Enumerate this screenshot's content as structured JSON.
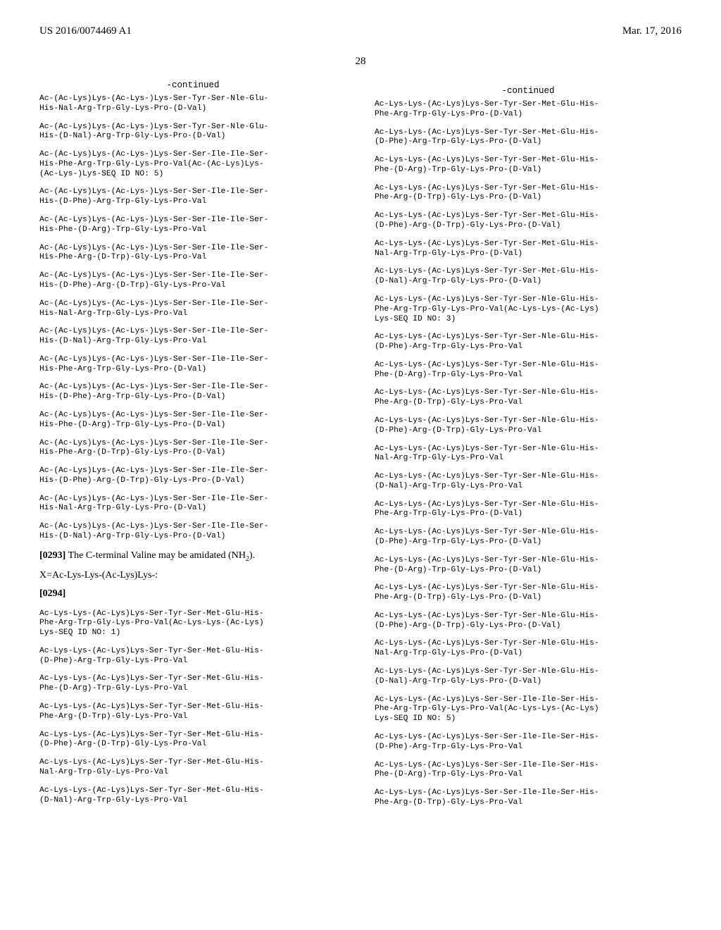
{
  "header": {
    "left": "US 2016/0074469 A1",
    "right": "Mar. 17, 2016",
    "page": "28"
  },
  "left": {
    "continued_label": "-continued",
    "seqs_top": [
      "Ac-(Ac-Lys)Lys-(Ac-Lys-)Lys-Ser-Tyr-Ser-Nle-Glu-\nHis-Nal-Arg-Trp-Gly-Lys-Pro-(D-Val)",
      "Ac-(Ac-Lys)Lys-(Ac-Lys-)Lys-Ser-Tyr-Ser-Nle-Glu-\nHis-(D-Nal)-Arg-Trp-Gly-Lys-Pro-(D-Val)",
      "Ac-(Ac-Lys)Lys-(Ac-Lys-)Lys-Ser-Ser-Ile-Ile-Ser-\nHis-Phe-Arg-Trp-Gly-Lys-Pro-Val(Ac-(Ac-Lys)Lys-\n(Ac-Lys-)Lys-SEQ ID NO: 5)",
      "Ac-(Ac-Lys)Lys-(Ac-Lys-)Lys-Ser-Ser-Ile-Ile-Ser-\nHis-(D-Phe)-Arg-Trp-Gly-Lys-Pro-Val",
      "Ac-(Ac-Lys)Lys-(Ac-Lys-)Lys-Ser-Ser-Ile-Ile-Ser-\nHis-Phe-(D-Arg)-Trp-Gly-Lys-Pro-Val",
      "Ac-(Ac-Lys)Lys-(Ac-Lys-)Lys-Ser-Ser-Ile-Ile-Ser-\nHis-Phe-Arg-(D-Trp)-Gly-Lys-Pro-Val",
      "Ac-(Ac-Lys)Lys-(Ac-Lys-)Lys-Ser-Ser-Ile-Ile-Ser-\nHis-(D-Phe)-Arg-(D-Trp)-Gly-Lys-Pro-Val",
      "Ac-(Ac-Lys)Lys-(Ac-Lys-)Lys-Ser-Ser-Ile-Ile-Ser-\nHis-Nal-Arg-Trp-Gly-Lys-Pro-Val",
      "Ac-(Ac-Lys)Lys-(Ac-Lys-)Lys-Ser-Ser-Ile-Ile-Ser-\nHis-(D-Nal)-Arg-Trp-Gly-Lys-Pro-Val",
      "Ac-(Ac-Lys)Lys-(Ac-Lys-)Lys-Ser-Ser-Ile-Ile-Ser-\nHis-Phe-Arg-Trp-Gly-Lys-Pro-(D-Val)",
      "Ac-(Ac-Lys)Lys-(Ac-Lys-)Lys-Ser-Ser-Ile-Ile-Ser-\nHis-(D-Phe)-Arg-Trp-Gly-Lys-Pro-(D-Val)",
      "Ac-(Ac-Lys)Lys-(Ac-Lys-)Lys-Ser-Ser-Ile-Ile-Ser-\nHis-Phe-(D-Arg)-Trp-Gly-Lys-Pro-(D-Val)",
      "Ac-(Ac-Lys)Lys-(Ac-Lys-)Lys-Ser-Ser-Ile-Ile-Ser-\nHis-Phe-Arg-(D-Trp)-Gly-Lys-Pro-(D-Val)",
      "Ac-(Ac-Lys)Lys-(Ac-Lys-)Lys-Ser-Ser-Ile-Ile-Ser-\nHis-(D-Phe)-Arg-(D-Trp)-Gly-Lys-Pro-(D-Val)",
      "Ac-(Ac-Lys)Lys-(Ac-Lys-)Lys-Ser-Ser-Ile-Ile-Ser-\nHis-Nal-Arg-Trp-Gly-Lys-Pro-(D-Val)",
      "Ac-(Ac-Lys)Lys-(Ac-Lys-)Lys-Ser-Ser-Ile-Ile-Ser-\nHis-(D-Nal)-Arg-Trp-Gly-Lys-Pro-(D-Val)"
    ],
    "para293_num": "[0293]",
    "para293_text": "   The C-terminal Valine may be amidated (NH",
    "para293_tail": ").",
    "xline": "X=Ac-Lys-Lys-(Ac-Lys)Lys-:",
    "para294_num": "[0294]",
    "seqs_bottom": [
      "Ac-Lys-Lys-(Ac-Lys)Lys-Ser-Tyr-Ser-Met-Glu-His-\nPhe-Arg-Trp-Gly-Lys-Pro-Val(Ac-Lys-Lys-(Ac-Lys)\nLys-SEQ ID NO: 1)",
      "Ac-Lys-Lys-(Ac-Lys)Lys-Ser-Tyr-Ser-Met-Glu-His-\n(D-Phe)-Arg-Trp-Gly-Lys-Pro-Val",
      "Ac-Lys-Lys-(Ac-Lys)Lys-Ser-Tyr-Ser-Met-Glu-His-\nPhe-(D-Arg)-Trp-Gly-Lys-Pro-Val",
      "Ac-Lys-Lys-(Ac-Lys)Lys-Ser-Tyr-Ser-Met-Glu-His-\nPhe-Arg-(D-Trp)-Gly-Lys-Pro-Val",
      "Ac-Lys-Lys-(Ac-Lys)Lys-Ser-Tyr-Ser-Met-Glu-His-\n(D-Phe)-Arg-(D-Trp)-Gly-Lys-Pro-Val",
      "Ac-Lys-Lys-(Ac-Lys)Lys-Ser-Tyr-Ser-Met-Glu-His-\nNal-Arg-Trp-Gly-Lys-Pro-Val",
      "Ac-Lys-Lys-(Ac-Lys)Lys-Ser-Tyr-Ser-Met-Glu-His-\n(D-Nal)-Arg-Trp-Gly-Lys-Pro-Val"
    ]
  },
  "right": {
    "continued_label": "-continued",
    "seqs": [
      "Ac-Lys-Lys-(Ac-Lys)Lys-Ser-Tyr-Ser-Met-Glu-His-\nPhe-Arg-Trp-Gly-Lys-Pro-(D-Val)",
      "Ac-Lys-Lys-(Ac-Lys)Lys-Ser-Tyr-Ser-Met-Glu-His-\n(D-Phe)-Arg-Trp-Gly-Lys-Pro-(D-Val)",
      "Ac-Lys-Lys-(Ac-Lys)Lys-Ser-Tyr-Ser-Met-Glu-His-\nPhe-(D-Arg)-Trp-Gly-Lys-Pro-(D-Val)",
      "Ac-Lys-Lys-(Ac-Lys)Lys-Ser-Tyr-Ser-Met-Glu-His-\nPhe-Arg-(D-Trp)-Gly-Lys-Pro-(D-Val)",
      "Ac-Lys-Lys-(Ac-Lys)Lys-Ser-Tyr-Ser-Met-Glu-His-\n(D-Phe)-Arg-(D-Trp)-Gly-Lys-Pro-(D-Val)",
      "Ac-Lys-Lys-(Ac-Lys)Lys-Ser-Tyr-Ser-Met-Glu-His-\nNal-Arg-Trp-Gly-Lys-Pro-(D-Val)",
      "Ac-Lys-Lys-(Ac-Lys)Lys-Ser-Tyr-Ser-Met-Glu-His-\n(D-Nal)-Arg-Trp-Gly-Lys-Pro-(D-Val)",
      "Ac-Lys-Lys-(Ac-Lys)Lys-Ser-Tyr-Ser-Nle-Glu-His-\nPhe-Arg-Trp-Gly-Lys-Pro-Val(Ac-Lys-Lys-(Ac-Lys)\nLys-SEQ ID NO: 3)",
      "Ac-Lys-Lys-(Ac-Lys)Lys-Ser-Tyr-Ser-Nle-Glu-His-\n(D-Phe)-Arg-Trp-Gly-Lys-Pro-Val",
      "Ac-Lys-Lys-(Ac-Lys)Lys-Ser-Tyr-Ser-Nle-Glu-His-\nPhe-(D-Arg)-Trp-Gly-Lys-Pro-Val",
      "Ac-Lys-Lys-(Ac-Lys)Lys-Ser-Tyr-Ser-Nle-Glu-His-\nPhe-Arg-(D-Trp)-Gly-Lys-Pro-Val",
      "Ac-Lys-Lys-(Ac-Lys)Lys-Ser-Tyr-Ser-Nle-Glu-His-\n(D-Phe)-Arg-(D-Trp)-Gly-Lys-Pro-Val",
      "Ac-Lys-Lys-(Ac-Lys)Lys-Ser-Tyr-Ser-Nle-Glu-His-\nNal-Arg-Trp-Gly-Lys-Pro-Val",
      "Ac-Lys-Lys-(Ac-Lys)Lys-Ser-Tyr-Ser-Nle-Glu-His-\n(D-Nal)-Arg-Trp-Gly-Lys-Pro-Val",
      "Ac-Lys-Lys-(Ac-Lys)Lys-Ser-Tyr-Ser-Nle-Glu-His-\nPhe-Arg-Trp-Gly-Lys-Pro-(D-Val)",
      "Ac-Lys-Lys-(Ac-Lys)Lys-Ser-Tyr-Ser-Nle-Glu-His-\n(D-Phe)-Arg-Trp-Gly-Lys-Pro-(D-Val)",
      "Ac-Lys-Lys-(Ac-Lys)Lys-Ser-Tyr-Ser-Nle-Glu-His-\nPhe-(D-Arg)-Trp-Gly-Lys-Pro-(D-Val)",
      "Ac-Lys-Lys-(Ac-Lys)Lys-Ser-Tyr-Ser-Nle-Glu-His-\nPhe-Arg-(D-Trp)-Gly-Lys-Pro-(D-Val)",
      "Ac-Lys-Lys-(Ac-Lys)Lys-Ser-Tyr-Ser-Nle-Glu-His-\n(D-Phe)-Arg-(D-Trp)-Gly-Lys-Pro-(D-Val)",
      "Ac-Lys-Lys-(Ac-Lys)Lys-Ser-Tyr-Ser-Nle-Glu-His-\nNal-Arg-Trp-Gly-Lys-Pro-(D-Val)",
      "Ac-Lys-Lys-(Ac-Lys)Lys-Ser-Tyr-Ser-Nle-Glu-His-\n(D-Nal)-Arg-Trp-Gly-Lys-Pro-(D-Val)",
      "Ac-Lys-Lys-(Ac-Lys)Lys-Ser-Ser-Ile-Ile-Ser-His-\nPhe-Arg-Trp-Gly-Lys-Pro-Val(Ac-Lys-Lys-(Ac-Lys)\nLys-SEQ ID NO: 5)",
      "Ac-Lys-Lys-(Ac-Lys)Lys-Ser-Ser-Ile-Ile-Ser-His-\n(D-Phe)-Arg-Trp-Gly-Lys-Pro-Val",
      "Ac-Lys-Lys-(Ac-Lys)Lys-Ser-Ser-Ile-Ile-Ser-His-\nPhe-(D-Arg)-Trp-Gly-Lys-Pro-Val",
      "Ac-Lys-Lys-(Ac-Lys)Lys-Ser-Ser-Ile-Ile-Ser-His-\nPhe-Arg-(D-Trp)-Gly-Lys-Pro-Val"
    ]
  }
}
